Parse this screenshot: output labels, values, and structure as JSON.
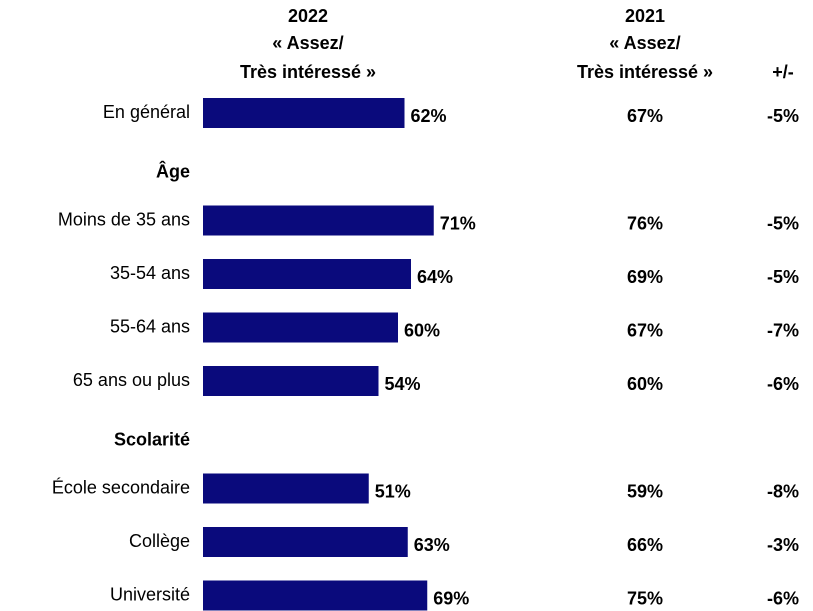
{
  "chart_data": {
    "type": "bar",
    "orientation": "horizontal",
    "color": "#0a0a7c",
    "header_color": "#8b1a2b",
    "xlim": [
      0,
      100
    ],
    "header_2022": [
      "2022",
      "« Assez/",
      "Très intéressé »"
    ],
    "header_2021": [
      "2021",
      "« Assez/",
      "Très intéressé »"
    ],
    "header_diff": "+/-",
    "groups": [
      {
        "categories": [
          "En général"
        ],
        "values": [
          62
        ],
        "value_labels": [
          "62%"
        ],
        "values_2021": [
          67
        ],
        "value_labels_2021": [
          "67%"
        ],
        "diff": [
          -5
        ],
        "diff_labels": [
          "-5%"
        ]
      },
      {
        "name": "Âge",
        "categories": [
          "Moins de 35 ans",
          "35-54 ans",
          "55-64 ans",
          "65 ans ou plus"
        ],
        "values": [
          71,
          64,
          60,
          54
        ],
        "value_labels": [
          "71%",
          "64%",
          "60%",
          "54%"
        ],
        "values_2021": [
          76,
          69,
          67,
          60
        ],
        "value_labels_2021": [
          "76%",
          "69%",
          "67%",
          "60%"
        ],
        "diff": [
          -5,
          -5,
          -7,
          -6
        ],
        "diff_labels": [
          "-5%",
          "-5%",
          "-7%",
          "-6%"
        ]
      },
      {
        "name": "Scolarité",
        "categories": [
          "École secondaire",
          "Collège",
          "Université"
        ],
        "values": [
          51,
          63,
          69
        ],
        "value_labels": [
          "51%",
          "63%",
          "69%"
        ],
        "values_2021": [
          59,
          66,
          75
        ],
        "value_labels_2021": [
          "59%",
          "66%",
          "75%"
        ],
        "diff": [
          -8,
          -3,
          -6
        ],
        "diff_labels": [
          "-8%",
          "-3%",
          "-6%"
        ]
      }
    ]
  }
}
